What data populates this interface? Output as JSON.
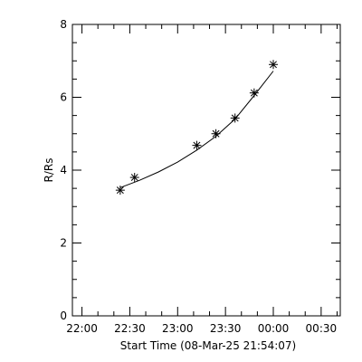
{
  "chart_data": {
    "type": "scatter",
    "xlabel": "Start Time (08-Mar-25 21:54:07)",
    "ylabel": "R/Rs",
    "x_tick_labels": [
      "22:00",
      "22:30",
      "23:00",
      "23:30",
      "00:00",
      "00:30"
    ],
    "x_tick_times": [
      "22:00",
      "22:30",
      "23:00",
      "23:30",
      "00:00",
      "00:30"
    ],
    "x_minor_step_minutes": 10,
    "xlim": [
      "21:54",
      "00:42"
    ],
    "y_tick_labels": [
      "0",
      "2",
      "4",
      "6",
      "8"
    ],
    "ylim": [
      0,
      8
    ],
    "y_minor_step": 0.5,
    "series": [
      {
        "marker": "asterisk",
        "points": [
          {
            "t": "22:24",
            "r": 3.45
          },
          {
            "t": "22:33",
            "r": 3.8
          },
          {
            "t": "23:12",
            "r": 4.68
          },
          {
            "t": "23:24",
            "r": 5.0
          },
          {
            "t": "23:36",
            "r": 5.43
          },
          {
            "t": "23:48",
            "r": 6.12
          },
          {
            "t": "00:00",
            "r": 6.9
          }
        ]
      }
    ],
    "fit_curve": [
      {
        "t": "22:24",
        "r": 3.52
      },
      {
        "t": "22:36",
        "r": 3.72
      },
      {
        "t": "22:48",
        "r": 3.95
      },
      {
        "t": "23:00",
        "r": 4.22
      },
      {
        "t": "23:12",
        "r": 4.55
      },
      {
        "t": "23:24",
        "r": 4.93
      },
      {
        "t": "23:36",
        "r": 5.4
      },
      {
        "t": "23:48",
        "r": 6.05
      },
      {
        "t": "00:00",
        "r": 6.72
      }
    ]
  }
}
